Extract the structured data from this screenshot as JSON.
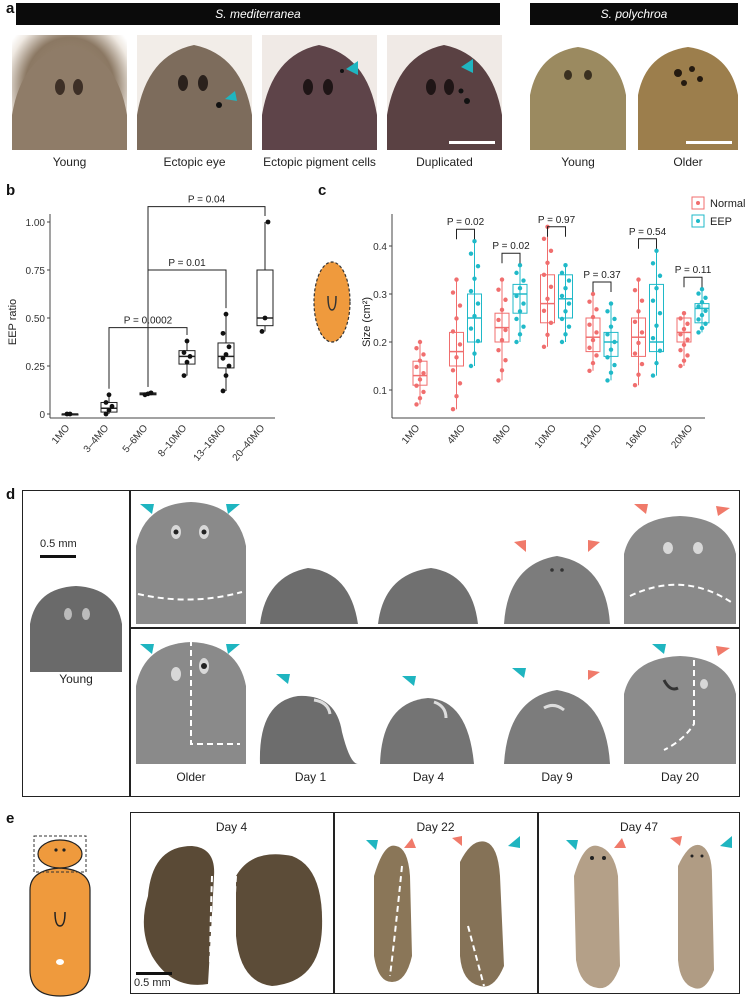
{
  "panels": {
    "a": "a",
    "b": "b",
    "c": "c",
    "d": "d",
    "e": "e"
  },
  "panel_a": {
    "species1": "S. mediterranea",
    "species2": "S. polychroa",
    "captions": [
      "Young",
      "Ectopic eye",
      "Ectopic pigment cells",
      "Duplicated",
      "Young",
      "Older"
    ]
  },
  "colors": {
    "normal": "#f06e6e",
    "eep": "#1fb9c8",
    "planarian": "#ef9a3d",
    "cyan_arrow": "#1fb5c0",
    "red_arrow": "#f07a6a"
  },
  "chart_data": [
    {
      "type": "box",
      "panel": "b",
      "ylabel": "EEP ratio",
      "ylim": [
        0,
        1.0
      ],
      "yticks": [
        "0",
        "0.25",
        "0.50",
        "0.75",
        "1.00"
      ],
      "categories": [
        "1MO",
        "3–4MO",
        "5–6MO",
        "8–10MO",
        "13–16MO",
        "20–40MO"
      ],
      "boxes": [
        {
          "q1": 0,
          "median": 0,
          "q3": 0,
          "whisker_low": 0,
          "whisker_high": 0,
          "points": [
            0,
            0
          ]
        },
        {
          "q1": 0.01,
          "median": 0.03,
          "q3": 0.06,
          "whisker_low": 0,
          "whisker_high": 0.1,
          "points": [
            0,
            0.02,
            0.04,
            0.06,
            0.1
          ]
        },
        {
          "q1": 0.1,
          "median": 0.105,
          "q3": 0.11,
          "whisker_low": 0.1,
          "whisker_high": 0.11,
          "points": [
            0.1,
            0.105,
            0.11
          ]
        },
        {
          "q1": 0.26,
          "median": 0.3,
          "q3": 0.33,
          "whisker_low": 0.2,
          "whisker_high": 0.38,
          "points": [
            0.2,
            0.27,
            0.3,
            0.32,
            0.38
          ]
        },
        {
          "q1": 0.24,
          "median": 0.3,
          "q3": 0.37,
          "whisker_low": 0.12,
          "whisker_high": 0.52,
          "points": [
            0.12,
            0.2,
            0.25,
            0.29,
            0.31,
            0.35,
            0.42,
            0.52
          ]
        },
        {
          "q1": 0.46,
          "median": 0.5,
          "q3": 0.75,
          "whisker_low": 0.43,
          "whisker_high": 1.0,
          "points": [
            0.43,
            0.5,
            1.0
          ]
        }
      ],
      "comparisons": [
        {
          "from": "3–4MO",
          "to": "8–10MO",
          "label": "P = 0.0002"
        },
        {
          "from": "5–6MO",
          "to": "13–16MO",
          "label": "P = 0.01"
        },
        {
          "from": "5–6MO",
          "to": "20–40MO",
          "label": "P = 0.04"
        }
      ]
    },
    {
      "type": "box",
      "panel": "c",
      "ylabel": "Size (cm²)",
      "ylim": [
        0.05,
        0.45
      ],
      "yticks": [
        "0.1",
        "0.2",
        "0.3",
        "0.4"
      ],
      "categories": [
        "1MO",
        "4MO",
        "8MO",
        "10MO",
        "12MO",
        "16MO",
        "20MO"
      ],
      "legend": [
        "Normal",
        "EEP"
      ],
      "series": [
        {
          "name": "Normal",
          "boxes": [
            {
              "q1": 0.11,
              "median": 0.13,
              "q3": 0.16,
              "whisker_low": 0.07,
              "whisker_high": 0.2
            },
            {
              "q1": 0.15,
              "median": 0.18,
              "q3": 0.22,
              "whisker_low": 0.06,
              "whisker_high": 0.33
            },
            {
              "q1": 0.2,
              "median": 0.23,
              "q3": 0.26,
              "whisker_low": 0.12,
              "whisker_high": 0.33
            },
            {
              "q1": 0.24,
              "median": 0.28,
              "q3": 0.34,
              "whisker_low": 0.19,
              "whisker_high": 0.44
            },
            {
              "q1": 0.18,
              "median": 0.21,
              "q3": 0.25,
              "whisker_low": 0.14,
              "whisker_high": 0.3
            },
            {
              "q1": 0.17,
              "median": 0.21,
              "q3": 0.25,
              "whisker_low": 0.11,
              "whisker_high": 0.33
            },
            {
              "q1": 0.2,
              "median": 0.22,
              "q3": 0.25,
              "whisker_low": 0.15,
              "whisker_high": 0.26
            }
          ]
        },
        {
          "name": "EEP",
          "boxes": [
            null,
            {
              "q1": 0.2,
              "median": 0.25,
              "q3": 0.3,
              "whisker_low": 0.15,
              "whisker_high": 0.41
            },
            {
              "q1": 0.26,
              "median": 0.3,
              "q3": 0.32,
              "whisker_low": 0.2,
              "whisker_high": 0.36
            },
            {
              "q1": 0.25,
              "median": 0.29,
              "q3": 0.34,
              "whisker_low": 0.2,
              "whisker_high": 0.36
            },
            {
              "q1": 0.17,
              "median": 0.2,
              "q3": 0.22,
              "whisker_low": 0.12,
              "whisker_high": 0.28
            },
            {
              "q1": 0.18,
              "median": 0.2,
              "q3": 0.32,
              "whisker_low": 0.13,
              "whisker_high": 0.39
            },
            {
              "q1": 0.24,
              "median": 0.27,
              "q3": 0.28,
              "whisker_low": 0.22,
              "whisker_high": 0.31
            }
          ]
        }
      ],
      "comparisons": [
        {
          "category": "4MO",
          "label": "P = 0.02"
        },
        {
          "category": "8MO",
          "label": "P = 0.02"
        },
        {
          "category": "10MO",
          "label": "P = 0.97"
        },
        {
          "category": "12MO",
          "label": "P = 0.37"
        },
        {
          "category": "16MO",
          "label": "P = 0.54"
        },
        {
          "category": "20MO",
          "label": "P = 0.11"
        }
      ]
    }
  ],
  "panel_d": {
    "scale": "0.5 mm",
    "young": "Young",
    "captions": [
      "Older",
      "Day 1",
      "Day 4",
      "Day 9",
      "Day 20"
    ]
  },
  "panel_e": {
    "titles": [
      "Day 4",
      "Day 22",
      "Day 47"
    ],
    "scale": "0.5 mm"
  }
}
